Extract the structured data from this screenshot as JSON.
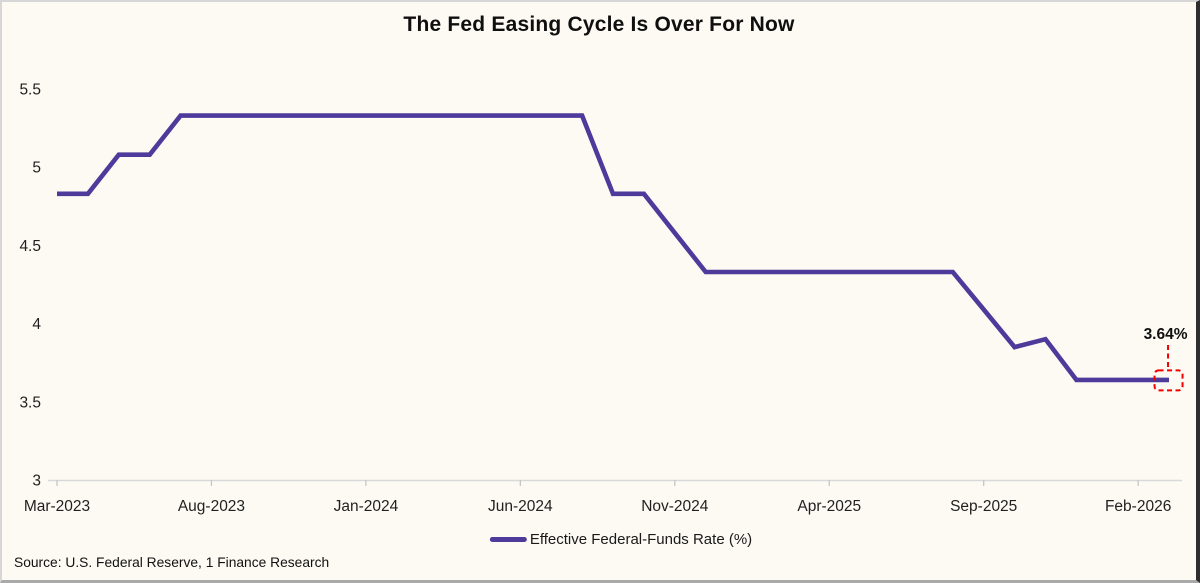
{
  "title": "The Fed Easing Cycle Is Over For Now",
  "chart_data": {
    "type": "line",
    "title": "The Fed Easing Cycle Is Over For Now",
    "x": [
      "Mar-2023",
      "Apr-2023",
      "May-2023",
      "Jun-2023",
      "Jul-2023",
      "Aug-2023",
      "Sep-2023",
      "Oct-2023",
      "Nov-2023",
      "Dec-2023",
      "Jan-2024",
      "Feb-2024",
      "Mar-2024",
      "Apr-2024",
      "May-2024",
      "Jun-2024",
      "Jul-2024",
      "Aug-2024",
      "Sep-2024",
      "Oct-2024",
      "Nov-2024",
      "Dec-2024",
      "Jan-2025",
      "Feb-2025",
      "Mar-2025",
      "Apr-2025",
      "May-2025",
      "Jun-2025",
      "Jul-2025",
      "Aug-2025",
      "Sep-2025",
      "Oct-2025",
      "Nov-2025",
      "Dec-2025",
      "Jan-2026",
      "Feb-2026",
      "Mar-2026"
    ],
    "series": [
      {
        "name": "Effective Federal-Funds Rate (%)",
        "values": [
          4.83,
          4.83,
          5.08,
          5.08,
          5.33,
          5.33,
          5.33,
          5.33,
          5.33,
          5.33,
          5.33,
          5.33,
          5.33,
          5.33,
          5.33,
          5.33,
          5.33,
          5.33,
          4.83,
          4.83,
          4.58,
          4.33,
          4.33,
          4.33,
          4.33,
          4.33,
          4.33,
          4.33,
          4.33,
          4.33,
          4.09,
          3.85,
          3.9,
          3.64,
          3.64,
          3.64,
          3.64
        ]
      }
    ],
    "x_tick_labels": [
      "Mar-2023",
      "Aug-2023",
      "Jan-2024",
      "Jun-2024",
      "Nov-2024",
      "Apr-2025",
      "Sep-2025",
      "Feb-2026"
    ],
    "x_tick_indices": [
      0,
      5,
      10,
      15,
      20,
      25,
      30,
      35
    ],
    "y_ticks": [
      5.5,
      5,
      4.5,
      4,
      3.5,
      3
    ],
    "ylim": [
      3,
      5.5
    ],
    "xlabel": "",
    "ylabel": "",
    "grid": false,
    "legend_position": "bottom-center",
    "annotation_text": "3.64%"
  },
  "annotation": {
    "label": "3.64%",
    "color": "#F40000"
  },
  "legend": {
    "label": "Effective Federal-Funds Rate (%)"
  },
  "source": {
    "text": "Source: U.S. Federal Reserve, 1 Finance Research"
  },
  "colors": {
    "background": "#FCFAF3",
    "line": "#4E3A9B",
    "annotation_red": "#F40000",
    "axis_line": "#D9D9D9",
    "tick": "#C6C6C6",
    "text": "#1F1F1F"
  }
}
